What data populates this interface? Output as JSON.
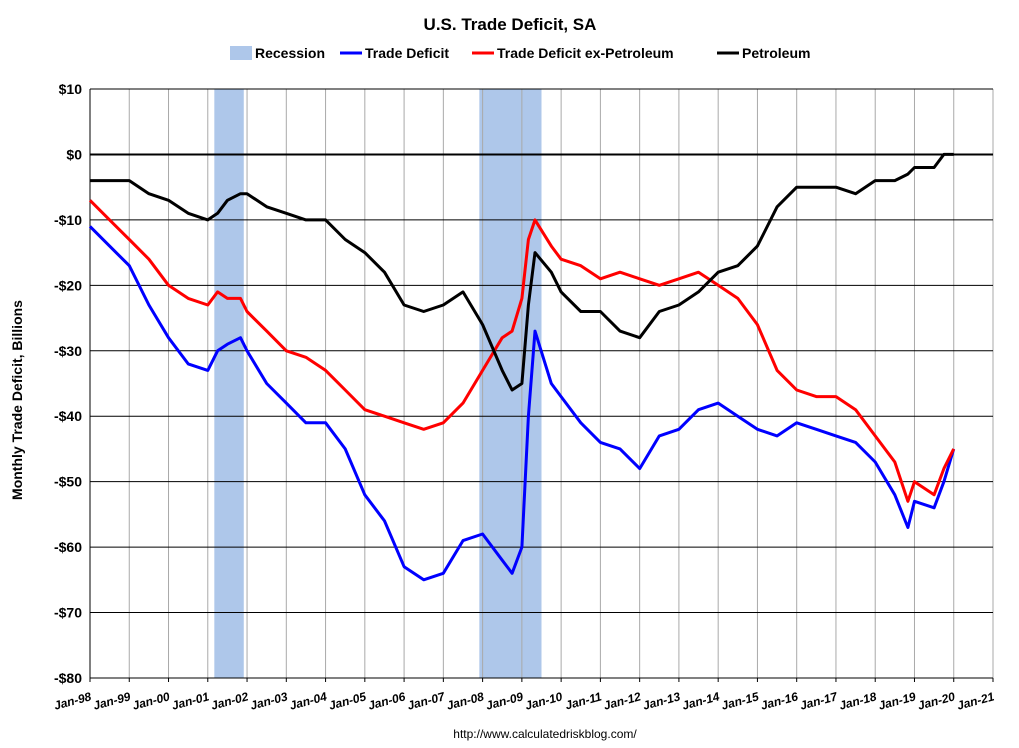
{
  "chart_data": {
    "type": "line",
    "title": "U.S. Trade Deficit, SA",
    "ylabel": "Monthly Trade Deficit, Billions",
    "source": "http://www.calculatedriskblog.com/",
    "ylim": [
      -80,
      10
    ],
    "y_ticks": [
      10,
      0,
      -10,
      -20,
      -30,
      -40,
      -50,
      -60,
      -70,
      -80
    ],
    "y_tick_labels": [
      "$10",
      "$0",
      "-$10",
      "-$20",
      "-$30",
      "-$40",
      "-$50",
      "-$60",
      "-$70",
      "-$80"
    ],
    "xlim": [
      "Jan-98",
      "Jan-21"
    ],
    "x_tick_labels": [
      "Jan-98",
      "Jan-99",
      "Jan-00",
      "Jan-01",
      "Jan-02",
      "Jan-03",
      "Jan-04",
      "Jan-05",
      "Jan-06",
      "Jan-07",
      "Jan-08",
      "Jan-09",
      "Jan-10",
      "Jan-11",
      "Jan-12",
      "Jan-13",
      "Jan-14",
      "Jan-15",
      "Jan-16",
      "Jan-17",
      "Jan-18",
      "Jan-19",
      "Jan-20",
      "Jan-21"
    ],
    "grid": true,
    "legend_position": "top",
    "recessions": [
      {
        "start": "Mar-01",
        "end": "Nov-01"
      },
      {
        "start": "Dec-07",
        "end": "Jun-09"
      }
    ],
    "legend": [
      {
        "label": "Recession",
        "color": "#aec7ea",
        "kind": "box"
      },
      {
        "label": "Trade Deficit",
        "color": "#0000ff",
        "kind": "line"
      },
      {
        "label": "Trade Deficit ex-Petroleum",
        "color": "#ff0000",
        "kind": "line"
      },
      {
        "label": "Petroleum",
        "color": "#000000",
        "kind": "line"
      }
    ],
    "series": [
      {
        "name": "Trade Deficit",
        "color": "#0000ff",
        "points": [
          [
            "Jan-98",
            -11
          ],
          [
            "Jul-98",
            -14
          ],
          [
            "Jan-99",
            -17
          ],
          [
            "Jul-99",
            -23
          ],
          [
            "Jan-00",
            -28
          ],
          [
            "Jul-00",
            -32
          ],
          [
            "Jan-01",
            -33
          ],
          [
            "Apr-01",
            -30
          ],
          [
            "Jul-01",
            -29
          ],
          [
            "Nov-01",
            -28
          ],
          [
            "Jan-02",
            -30
          ],
          [
            "Jul-02",
            -35
          ],
          [
            "Jan-03",
            -38
          ],
          [
            "Jul-03",
            -41
          ],
          [
            "Jan-04",
            -41
          ],
          [
            "Jul-04",
            -45
          ],
          [
            "Jan-05",
            -52
          ],
          [
            "Jul-05",
            -56
          ],
          [
            "Jan-06",
            -63
          ],
          [
            "Jul-06",
            -65
          ],
          [
            "Jan-07",
            -64
          ],
          [
            "Jul-07",
            -59
          ],
          [
            "Jan-08",
            -58
          ],
          [
            "Jul-08",
            -62
          ],
          [
            "Oct-08",
            -64
          ],
          [
            "Jan-09",
            -60
          ],
          [
            "Mar-09",
            -40
          ],
          [
            "May-09",
            -27
          ],
          [
            "Oct-09",
            -35
          ],
          [
            "Jan-10",
            -37
          ],
          [
            "Jul-10",
            -41
          ],
          [
            "Jan-11",
            -44
          ],
          [
            "Jul-11",
            -45
          ],
          [
            "Jan-12",
            -48
          ],
          [
            "Jul-12",
            -43
          ],
          [
            "Jan-13",
            -42
          ],
          [
            "Jul-13",
            -39
          ],
          [
            "Jan-14",
            -38
          ],
          [
            "Jul-14",
            -40
          ],
          [
            "Jan-15",
            -42
          ],
          [
            "Jul-15",
            -43
          ],
          [
            "Jan-16",
            -41
          ],
          [
            "Jul-16",
            -42
          ],
          [
            "Jan-17",
            -43
          ],
          [
            "Jul-17",
            -44
          ],
          [
            "Jan-18",
            -47
          ],
          [
            "Jul-18",
            -52
          ],
          [
            "Nov-18",
            -57
          ],
          [
            "Jan-19",
            -53
          ],
          [
            "Jul-19",
            -54
          ],
          [
            "Oct-19",
            -50
          ],
          [
            "Jan-20",
            -45
          ]
        ]
      },
      {
        "name": "Trade Deficit ex-Petroleum",
        "color": "#ff0000",
        "points": [
          [
            "Jan-98",
            -7
          ],
          [
            "Jul-98",
            -10
          ],
          [
            "Jan-99",
            -13
          ],
          [
            "Jul-99",
            -16
          ],
          [
            "Jan-00",
            -20
          ],
          [
            "Jul-00",
            -22
          ],
          [
            "Jan-01",
            -23
          ],
          [
            "Apr-01",
            -21
          ],
          [
            "Jul-01",
            -22
          ],
          [
            "Nov-01",
            -22
          ],
          [
            "Jan-02",
            -24
          ],
          [
            "Jul-02",
            -27
          ],
          [
            "Jan-03",
            -30
          ],
          [
            "Jul-03",
            -31
          ],
          [
            "Jan-04",
            -33
          ],
          [
            "Jul-04",
            -36
          ],
          [
            "Jan-05",
            -39
          ],
          [
            "Jul-05",
            -40
          ],
          [
            "Jan-06",
            -41
          ],
          [
            "Jul-06",
            -42
          ],
          [
            "Jan-07",
            -41
          ],
          [
            "Jul-07",
            -38
          ],
          [
            "Jan-08",
            -33
          ],
          [
            "Jul-08",
            -28
          ],
          [
            "Oct-08",
            -27
          ],
          [
            "Jan-09",
            -22
          ],
          [
            "Mar-09",
            -13
          ],
          [
            "May-09",
            -10
          ],
          [
            "Oct-09",
            -14
          ],
          [
            "Jan-10",
            -16
          ],
          [
            "Jul-10",
            -17
          ],
          [
            "Jan-11",
            -19
          ],
          [
            "Jul-11",
            -18
          ],
          [
            "Jan-12",
            -19
          ],
          [
            "Jul-12",
            -20
          ],
          [
            "Jan-13",
            -19
          ],
          [
            "Jul-13",
            -18
          ],
          [
            "Jan-14",
            -20
          ],
          [
            "Jul-14",
            -22
          ],
          [
            "Jan-15",
            -26
          ],
          [
            "Jul-15",
            -33
          ],
          [
            "Jan-16",
            -36
          ],
          [
            "Jul-16",
            -37
          ],
          [
            "Jan-17",
            -37
          ],
          [
            "Jul-17",
            -39
          ],
          [
            "Jan-18",
            -43
          ],
          [
            "Jul-18",
            -47
          ],
          [
            "Nov-18",
            -53
          ],
          [
            "Jan-19",
            -50
          ],
          [
            "Jul-19",
            -52
          ],
          [
            "Oct-19",
            -48
          ],
          [
            "Jan-20",
            -45
          ]
        ]
      },
      {
        "name": "Petroleum",
        "color": "#000000",
        "points": [
          [
            "Jan-98",
            -4
          ],
          [
            "Jul-98",
            -4
          ],
          [
            "Jan-99",
            -4
          ],
          [
            "Jul-99",
            -6
          ],
          [
            "Jan-00",
            -7
          ],
          [
            "Jul-00",
            -9
          ],
          [
            "Jan-01",
            -10
          ],
          [
            "Apr-01",
            -9
          ],
          [
            "Jul-01",
            -7
          ],
          [
            "Nov-01",
            -6
          ],
          [
            "Jan-02",
            -6
          ],
          [
            "Jul-02",
            -8
          ],
          [
            "Jan-03",
            -9
          ],
          [
            "Jul-03",
            -10
          ],
          [
            "Jan-04",
            -10
          ],
          [
            "Jul-04",
            -13
          ],
          [
            "Jan-05",
            -15
          ],
          [
            "Jul-05",
            -18
          ],
          [
            "Jan-06",
            -23
          ],
          [
            "Jul-06",
            -24
          ],
          [
            "Jan-07",
            -23
          ],
          [
            "Jul-07",
            -21
          ],
          [
            "Jan-08",
            -26
          ],
          [
            "Jul-08",
            -33
          ],
          [
            "Oct-08",
            -36
          ],
          [
            "Jan-09",
            -35
          ],
          [
            "Mar-09",
            -23
          ],
          [
            "May-09",
            -15
          ],
          [
            "Oct-09",
            -18
          ],
          [
            "Jan-10",
            -21
          ],
          [
            "Jul-10",
            -24
          ],
          [
            "Jan-11",
            -24
          ],
          [
            "Jul-11",
            -27
          ],
          [
            "Jan-12",
            -28
          ],
          [
            "Jul-12",
            -24
          ],
          [
            "Jan-13",
            -23
          ],
          [
            "Jul-13",
            -21
          ],
          [
            "Jan-14",
            -18
          ],
          [
            "Jul-14",
            -17
          ],
          [
            "Jan-15",
            -14
          ],
          [
            "Jul-15",
            -8
          ],
          [
            "Jan-16",
            -5
          ],
          [
            "Jul-16",
            -5
          ],
          [
            "Jan-17",
            -5
          ],
          [
            "Jul-17",
            -6
          ],
          [
            "Jan-18",
            -4
          ],
          [
            "Jul-18",
            -4
          ],
          [
            "Nov-18",
            -3
          ],
          [
            "Jan-19",
            -2
          ],
          [
            "Jul-19",
            -2
          ],
          [
            "Oct-19",
            0
          ],
          [
            "Jan-20",
            0
          ]
        ]
      }
    ]
  }
}
